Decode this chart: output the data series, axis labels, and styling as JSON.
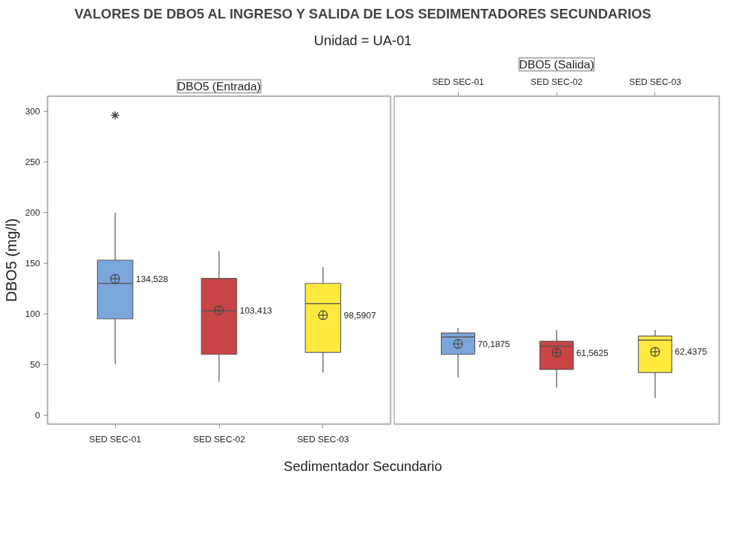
{
  "chart_data": [
    {
      "type": "box",
      "title": "DBO5 (Entrada)",
      "annotations": [
        "VALORES DE DBO5 AL INGRESO Y SALIDA DE LOS SEDIMENTADORES SECUNDARIOS",
        "Unidad = UA-01"
      ],
      "xlabel": "Sedimentador Secundario",
      "ylabel": "DBO5 (mg/l)",
      "categories": [
        "SED SEC-01",
        "SED SEC-02",
        "SED SEC-03"
      ],
      "colors": [
        "#7ba6dc",
        "#c94444",
        "#ffe93f"
      ],
      "boxes": [
        {
          "low": 50,
          "q1": 95,
          "median": 130,
          "q3": 153,
          "high": 200,
          "mean": 134.528,
          "outliers": [
            296
          ]
        },
        {
          "low": 33,
          "q1": 60,
          "median": 103,
          "q3": 135,
          "high": 162,
          "mean": 103.413
        },
        {
          "low": 42,
          "q1": 62,
          "median": 110,
          "q3": 130,
          "high": 146,
          "mean": 98.5907
        }
      ],
      "value_labels": [
        "134,528",
        "103,413",
        "98,5907"
      ],
      "ylim": [
        -9,
        315
      ],
      "yticks": [
        0,
        50,
        100,
        150,
        200,
        250,
        300
      ],
      "grid": false
    },
    {
      "type": "box",
      "title": "DBO5 (Salida)",
      "categories": [
        "SED SEC-01",
        "SED SEC-02",
        "SED SEC-03"
      ],
      "colors": [
        "#7ba6dc",
        "#c94444",
        "#ffe93f"
      ],
      "boxes": [
        {
          "low": 37,
          "q1": 60,
          "median": 77,
          "q3": 81,
          "high": 86,
          "mean": 70.1875
        },
        {
          "low": 27,
          "q1": 45,
          "median": 68,
          "q3": 73,
          "high": 84,
          "mean": 61.5625
        },
        {
          "low": 17,
          "q1": 42,
          "median": 74,
          "q3": 78,
          "high": 84,
          "mean": 62.4375
        }
      ],
      "value_labels": [
        "70,1875",
        "61,5625",
        "62,4375"
      ],
      "ylim": [
        -9,
        315
      ],
      "yticks": [
        0,
        50,
        100,
        150,
        200,
        250,
        300
      ],
      "tick_labels": "x",
      "grid": false
    }
  ]
}
